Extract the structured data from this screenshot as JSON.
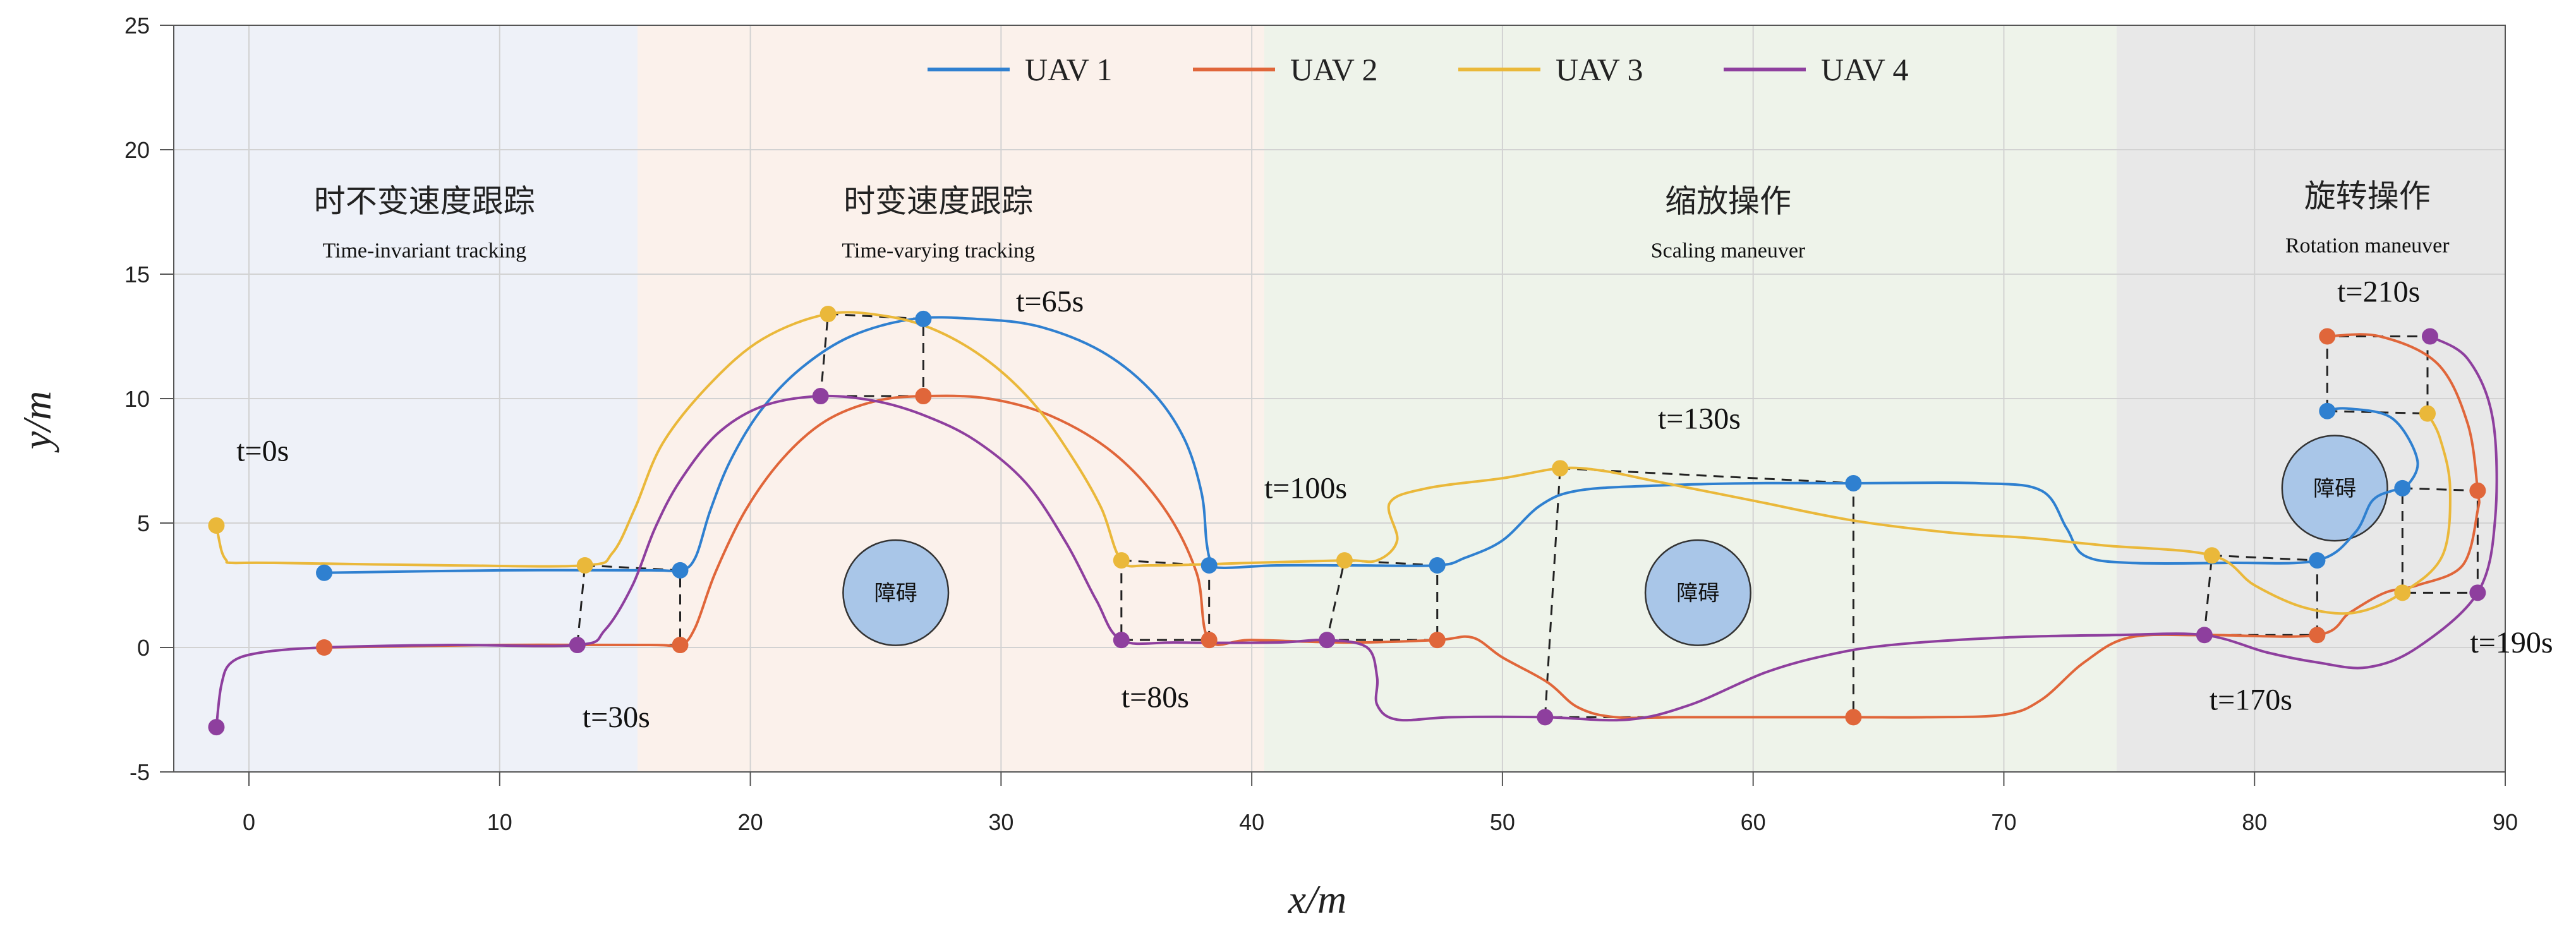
{
  "chart_data": {
    "type": "line",
    "xlabel": "x/m",
    "ylabel": "y/m",
    "xlim": [
      -3,
      90
    ],
    "ylim": [
      -5,
      25
    ],
    "xticks": [
      0,
      10,
      20,
      30,
      40,
      50,
      60,
      70,
      80,
      90
    ],
    "yticks": [
      -5,
      0,
      5,
      10,
      15,
      20,
      25
    ],
    "grid": true,
    "legend_position": "top-center",
    "phases": [
      {
        "cn": "时不变速度跟踪",
        "en": "Time-invariant tracking",
        "x_range": [
          -3,
          15.5
        ],
        "color": "#eef1f8",
        "label_at": [
          7,
          17.5
        ]
      },
      {
        "cn": "时变速度跟踪",
        "en": "Time-varying tracking",
        "x_range": [
          15.5,
          40.5
        ],
        "color": "#fbf1eb",
        "label_at": [
          27.5,
          17.5
        ]
      },
      {
        "cn": "缩放操作",
        "en": "Scaling maneuver",
        "x_range": [
          40.5,
          74.5
        ],
        "color": "#eef3ea",
        "label_at": [
          59,
          17.5
        ]
      },
      {
        "cn": "旋转操作",
        "en": "Rotation maneuver",
        "x_range": [
          74.5,
          90
        ],
        "color": "#e8e8e8",
        "label_at": [
          84.5,
          17.7
        ]
      }
    ],
    "obstacles": [
      {
        "label": "障碍",
        "center": [
          25.8,
          2.2
        ],
        "radius": 2.1
      },
      {
        "label": "障碍",
        "center": [
          57.8,
          2.2
        ],
        "radius": 2.1
      },
      {
        "label": "障碍",
        "center": [
          83.2,
          6.4
        ],
        "radius": 2.1
      }
    ],
    "time_labels": [
      {
        "text": "t=0s",
        "at": [
          -0.5,
          7.5
        ]
      },
      {
        "text": "t=30s",
        "at": [
          13.3,
          -3.2
        ]
      },
      {
        "text": "t=65s",
        "at": [
          30.6,
          13.5
        ]
      },
      {
        "text": "t=80s",
        "at": [
          34.8,
          -2.4
        ]
      },
      {
        "text": "t=100s",
        "at": [
          40.5,
          6.0
        ]
      },
      {
        "text": "t=130s",
        "at": [
          56.2,
          8.8
        ]
      },
      {
        "text": "t=170s",
        "at": [
          78.2,
          -2.5
        ]
      },
      {
        "text": "t=190s",
        "at": [
          88.6,
          -0.2
        ]
      },
      {
        "text": "t=210s",
        "at": [
          83.3,
          13.9
        ]
      }
    ],
    "formations": [
      [
        [
          13.4,
          3.3
        ],
        [
          17.2,
          3.1
        ],
        [
          17.2,
          0.1
        ],
        [
          13.1,
          0.1
        ]
      ],
      [
        [
          23.1,
          13.4
        ],
        [
          26.9,
          13.2
        ],
        [
          26.9,
          10.1
        ],
        [
          22.8,
          10.1
        ]
      ],
      [
        [
          34.8,
          3.5
        ],
        [
          38.3,
          3.3
        ],
        [
          38.3,
          0.3
        ],
        [
          34.8,
          0.3
        ]
      ],
      [
        [
          43.7,
          3.5
        ],
        [
          47.4,
          3.3
        ],
        [
          47.4,
          0.3
        ],
        [
          43.0,
          0.3
        ]
      ],
      [
        [
          52.3,
          7.2
        ],
        [
          64.0,
          6.6
        ],
        [
          64.0,
          -2.8
        ],
        [
          51.7,
          -2.8
        ]
      ],
      [
        [
          78.3,
          3.7
        ],
        [
          82.5,
          3.5
        ],
        [
          82.5,
          0.5
        ],
        [
          78.0,
          0.5
        ]
      ],
      [
        [
          82.9,
          9.5
        ],
        [
          86.9,
          9.4
        ],
        [
          86.9,
          12.5
        ],
        [
          82.9,
          12.5
        ]
      ],
      [
        [
          85.9,
          6.4
        ],
        [
          88.9,
          6.3
        ],
        [
          88.9,
          2.2
        ],
        [
          85.9,
          2.2
        ]
      ]
    ],
    "series": [
      {
        "name": "UAV 1",
        "color": "#2f80d0",
        "points": [
          [
            3,
            3
          ],
          [
            10,
            3.1
          ],
          [
            16,
            3.1
          ],
          [
            17.2,
            3.1
          ],
          [
            17.8,
            3.6
          ],
          [
            18.4,
            5.5
          ],
          [
            19.2,
            7.5
          ],
          [
            20.4,
            9.5
          ],
          [
            22,
            11.2
          ],
          [
            24,
            12.5
          ],
          [
            26.5,
            13.2
          ],
          [
            29,
            13.2
          ],
          [
            31.5,
            12.9
          ],
          [
            34,
            11.9
          ],
          [
            36,
            10.3
          ],
          [
            37.3,
            8.4
          ],
          [
            38,
            6.2
          ],
          [
            38.2,
            4.2
          ],
          [
            38.4,
            3.4
          ],
          [
            38.8,
            3.2
          ],
          [
            41,
            3.3
          ],
          [
            44,
            3.3
          ],
          [
            47.4,
            3.3
          ],
          [
            48.5,
            3.6
          ],
          [
            50,
            4.3
          ],
          [
            51.5,
            5.7
          ],
          [
            53,
            6.3
          ],
          [
            56,
            6.5
          ],
          [
            60,
            6.6
          ],
          [
            64,
            6.6
          ],
          [
            69,
            6.6
          ],
          [
            71.5,
            6.3
          ],
          [
            72.5,
            4.8
          ],
          [
            73.2,
            3.7
          ],
          [
            75,
            3.4
          ],
          [
            79,
            3.4
          ],
          [
            82.5,
            3.5
          ],
          [
            84,
            4.6
          ],
          [
            84.7,
            5.9
          ],
          [
            85.5,
            6.3
          ],
          [
            86,
            6.4
          ],
          [
            86.5,
            7.5
          ],
          [
            85.5,
            9.2
          ],
          [
            83.7,
            9.6
          ],
          [
            82.9,
            9.5
          ]
        ],
        "markers": [
          [
            3,
            3
          ],
          [
            17.2,
            3.1
          ],
          [
            26.9,
            13.2
          ],
          [
            38.3,
            3.3
          ],
          [
            47.4,
            3.3
          ],
          [
            64.0,
            6.6
          ],
          [
            82.5,
            3.5
          ],
          [
            85.9,
            6.4
          ],
          [
            82.9,
            9.5
          ]
        ]
      },
      {
        "name": "UAV 2",
        "color": "#e0663a",
        "points": [
          [
            3,
            0
          ],
          [
            10,
            0.1
          ],
          [
            16,
            0.1
          ],
          [
            17.2,
            0.1
          ],
          [
            17.8,
            0.8
          ],
          [
            18.6,
            3
          ],
          [
            19.8,
            5.5
          ],
          [
            21.3,
            7.6
          ],
          [
            23,
            9.1
          ],
          [
            25,
            9.9
          ],
          [
            27,
            10.1
          ],
          [
            29.5,
            10
          ],
          [
            32,
            9.3
          ],
          [
            34.5,
            7.8
          ],
          [
            36.5,
            5.6
          ],
          [
            37.8,
            3
          ],
          [
            38.3,
            0.3
          ],
          [
            40,
            0.3
          ],
          [
            44,
            0.2
          ],
          [
            47.4,
            0.3
          ],
          [
            48.8,
            0.4
          ],
          [
            50,
            -0.4
          ],
          [
            51.8,
            -1.4
          ],
          [
            53,
            -2.4
          ],
          [
            54.5,
            -2.8
          ],
          [
            57,
            -2.8
          ],
          [
            60,
            -2.8
          ],
          [
            64,
            -2.8
          ],
          [
            67,
            -2.8
          ],
          [
            70,
            -2.7
          ],
          [
            71.5,
            -2.1
          ],
          [
            73.2,
            -0.6
          ],
          [
            75,
            0.4
          ],
          [
            78,
            0.5
          ],
          [
            82.5,
            0.5
          ],
          [
            83.8,
            1.4
          ],
          [
            85.2,
            2.2
          ],
          [
            86.5,
            2.5
          ],
          [
            88.3,
            3.3
          ],
          [
            88.9,
            5.5
          ],
          [
            88.9,
            6.3
          ],
          [
            88.5,
            9
          ],
          [
            87.3,
            11.4
          ],
          [
            85,
            12.5
          ],
          [
            82.9,
            12.5
          ]
        ],
        "markers": [
          [
            3,
            0
          ],
          [
            17.2,
            0.1
          ],
          [
            26.9,
            10.1
          ],
          [
            38.3,
            0.3
          ],
          [
            47.4,
            0.3
          ],
          [
            64.0,
            -2.8
          ],
          [
            82.5,
            0.5
          ],
          [
            88.9,
            6.3
          ],
          [
            82.9,
            12.5
          ]
        ]
      },
      {
        "name": "UAV 3",
        "color": "#eab83a",
        "points": [
          [
            -1.3,
            4.9
          ],
          [
            -1.1,
            3.9
          ],
          [
            -0.9,
            3.5
          ],
          [
            -0.7,
            3.4
          ],
          [
            1,
            3.4
          ],
          [
            8,
            3.3
          ],
          [
            13.4,
            3.3
          ],
          [
            14.5,
            3.8
          ],
          [
            15.4,
            5.6
          ],
          [
            16.5,
            8.2
          ],
          [
            18.4,
            10.6
          ],
          [
            20.5,
            12.4
          ],
          [
            23.1,
            13.4
          ],
          [
            25.5,
            13.3
          ],
          [
            27.5,
            12.7
          ],
          [
            29.5,
            11.5
          ],
          [
            31.3,
            9.8
          ],
          [
            32.8,
            7.7
          ],
          [
            34,
            5.6
          ],
          [
            34.8,
            3.5
          ],
          [
            36,
            3.3
          ],
          [
            40,
            3.4
          ],
          [
            43.7,
            3.5
          ],
          [
            45,
            3.5
          ],
          [
            45.8,
            4.3
          ],
          [
            45.5,
            5.8
          ],
          [
            47,
            6.4
          ],
          [
            50,
            6.8
          ],
          [
            52.3,
            7.2
          ],
          [
            54,
            7.1
          ],
          [
            56,
            6.7
          ],
          [
            60,
            5.9
          ],
          [
            64,
            5.1
          ],
          [
            68,
            4.6
          ],
          [
            71,
            4.4
          ],
          [
            74,
            4.1
          ],
          [
            78.3,
            3.7
          ],
          [
            80,
            2.5
          ],
          [
            82,
            1.6
          ],
          [
            84,
            1.4
          ],
          [
            85.9,
            2.2
          ],
          [
            87.5,
            3.7
          ],
          [
            87.8,
            6.4
          ],
          [
            87.4,
            8.4
          ],
          [
            86.9,
            9.4
          ]
        ],
        "markers": [
          [
            -1.3,
            4.9
          ],
          [
            13.4,
            3.3
          ],
          [
            23.1,
            13.4
          ],
          [
            34.8,
            3.5
          ],
          [
            43.7,
            3.5
          ],
          [
            52.3,
            7.2
          ],
          [
            78.3,
            3.7
          ],
          [
            85.9,
            2.2
          ],
          [
            86.9,
            9.4
          ]
        ]
      },
      {
        "name": "UAV 4",
        "color": "#8e3f9e",
        "points": [
          [
            -1.3,
            -3.2
          ],
          [
            -1.1,
            -1.5
          ],
          [
            -0.7,
            -0.6
          ],
          [
            0.5,
            -0.2
          ],
          [
            3,
            0
          ],
          [
            8,
            0.1
          ],
          [
            13.1,
            0.1
          ],
          [
            14.2,
            0.7
          ],
          [
            15.3,
            2.5
          ],
          [
            16.2,
            4.8
          ],
          [
            17.2,
            6.7
          ],
          [
            18.7,
            8.6
          ],
          [
            20.5,
            9.7
          ],
          [
            22.8,
            10.1
          ],
          [
            25,
            9.9
          ],
          [
            27,
            9.3
          ],
          [
            29,
            8.3
          ],
          [
            31,
            6.6
          ],
          [
            32.6,
            4.2
          ],
          [
            33.8,
            1.9
          ],
          [
            34.8,
            0.3
          ],
          [
            37,
            0.2
          ],
          [
            41,
            0.2
          ],
          [
            43,
            0.3
          ],
          [
            44.6,
            0
          ],
          [
            45,
            -1.2
          ],
          [
            45,
            -2.3
          ],
          [
            45.8,
            -2.9
          ],
          [
            48,
            -2.8
          ],
          [
            51.7,
            -2.8
          ],
          [
            55,
            -2.9
          ],
          [
            57.5,
            -2.3
          ],
          [
            60.5,
            -1
          ],
          [
            63,
            -0.3
          ],
          [
            65.5,
            0.1
          ],
          [
            70,
            0.4
          ],
          [
            74.5,
            0.5
          ],
          [
            78,
            0.5
          ],
          [
            80.5,
            -0.2
          ],
          [
            82.5,
            -0.6
          ],
          [
            84.5,
            -0.8
          ],
          [
            86.5,
            0
          ],
          [
            88.9,
            2.2
          ],
          [
            89.6,
            5.2
          ],
          [
            89.5,
            9.2
          ],
          [
            88.5,
            11.6
          ],
          [
            87,
            12.5
          ]
        ],
        "markers": [
          [
            -1.3,
            -3.2
          ],
          [
            13.1,
            0.1
          ],
          [
            22.8,
            10.1
          ],
          [
            34.8,
            0.3
          ],
          [
            43.0,
            0.3
          ],
          [
            51.7,
            -2.8
          ],
          [
            78.0,
            0.5
          ],
          [
            88.9,
            2.2
          ],
          [
            87.0,
            12.5
          ]
        ]
      }
    ]
  }
}
